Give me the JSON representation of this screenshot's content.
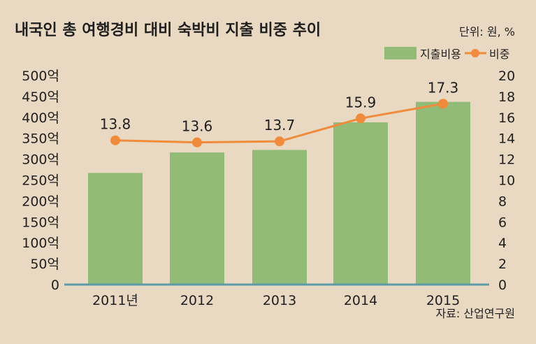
{
  "header": {
    "title": "내국인 총 여행경비 대비 숙박비 지출 비중 추이",
    "unit": "단위: 원, %"
  },
  "source": "자료: 산업연구원",
  "colors": {
    "background": "#ead9c2",
    "bar": "#92bb78",
    "line": "#ef8b3b",
    "baseline": "#5b9aa6"
  },
  "chart_data": {
    "type": "bar",
    "categories": [
      "2011년",
      "2012",
      "2013",
      "2014",
      "2015"
    ],
    "series": [
      {
        "name": "지출비용",
        "type": "bar",
        "axis": "left",
        "values": [
          267,
          316,
          322,
          388,
          437
        ]
      },
      {
        "name": "비중",
        "type": "line",
        "axis": "right",
        "values": [
          13.8,
          13.6,
          13.7,
          15.9,
          17.3
        ]
      }
    ],
    "data_labels": [
      "13.8",
      "13.6",
      "13.7",
      "15.9",
      "17.3"
    ],
    "y_left": {
      "ticks": [
        "0",
        "50억",
        "100억",
        "150억",
        "200억",
        "250억",
        "300억",
        "350억",
        "400억",
        "450억",
        "500억"
      ],
      "ylim": [
        0,
        500
      ]
    },
    "y_right": {
      "ticks": [
        "0",
        "2",
        "4",
        "6",
        "8",
        "10",
        "12",
        "14",
        "16",
        "18",
        "20"
      ],
      "ylim": [
        0,
        20
      ]
    },
    "legend": {
      "placement": "top-right",
      "entries": [
        "지출비용",
        "비중"
      ]
    },
    "grid": false
  }
}
